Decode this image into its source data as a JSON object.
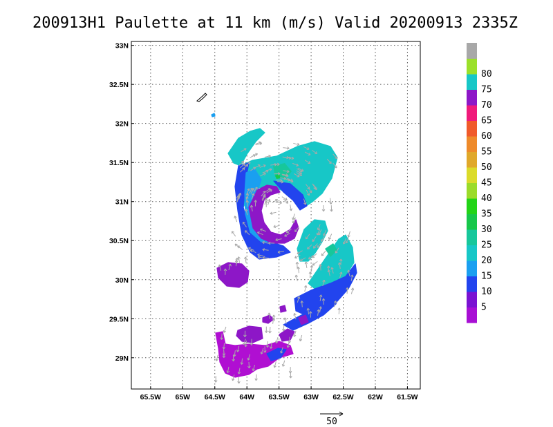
{
  "title": "200913H1 Paulette at 11 km (m/s) Valid 20200913 2335Z",
  "map": {
    "lon_range": [
      -65.8,
      -61.3
    ],
    "lat_range": [
      28.6,
      33.05
    ],
    "lon_ticks": [
      {
        "value": -65.5,
        "label": "65.5W"
      },
      {
        "value": -65.0,
        "label": "65W"
      },
      {
        "value": -64.5,
        "label": "64.5W"
      },
      {
        "value": -64.0,
        "label": "64W"
      },
      {
        "value": -63.5,
        "label": "63.5W"
      },
      {
        "value": -63.0,
        "label": "63W"
      },
      {
        "value": -62.5,
        "label": "62.5W"
      },
      {
        "value": -62.0,
        "label": "62W"
      },
      {
        "value": -61.5,
        "label": "61.5W"
      }
    ],
    "lat_ticks": [
      {
        "value": 29.0,
        "label": "29N"
      },
      {
        "value": 29.5,
        "label": "29.5N"
      },
      {
        "value": 30.0,
        "label": "30N"
      },
      {
        "value": 30.5,
        "label": "30.5N"
      },
      {
        "value": 31.0,
        "label": "31N"
      },
      {
        "value": 31.5,
        "label": "31.5N"
      },
      {
        "value": 32.0,
        "label": "32N"
      },
      {
        "value": 32.5,
        "label": "32.5N"
      },
      {
        "value": 33.0,
        "label": "33N"
      }
    ],
    "grid": "dotted",
    "colors": {
      "cyan": "#17c7c7",
      "teal": "#17c79b",
      "blue_light": "#1a9ff0",
      "blue": "#2244ee",
      "violet": "#8d17c7",
      "magenta": "#b00fd2",
      "green_dark": "#17c74a",
      "vector": "#a9a9a9",
      "coast": "#000000"
    }
  },
  "colorbar": {
    "bins": [
      {
        "color": "#a80fd4",
        "label": ""
      },
      {
        "color": "#7a12d2",
        "label": "5"
      },
      {
        "color": "#2244ee",
        "label": "10"
      },
      {
        "color": "#1a9ff0",
        "label": "15"
      },
      {
        "color": "#17c7c7",
        "label": "20"
      },
      {
        "color": "#17c79b",
        "label": "25"
      },
      {
        "color": "#17c74a",
        "label": "30"
      },
      {
        "color": "#22d417",
        "label": "35"
      },
      {
        "color": "#9bdb2a",
        "label": "40"
      },
      {
        "color": "#dbdb2a",
        "label": "45"
      },
      {
        "color": "#e0a82a",
        "label": "50"
      },
      {
        "color": "#ee8a2a",
        "label": "55"
      },
      {
        "color": "#f05a2a",
        "label": "60"
      },
      {
        "color": "#f01a7a",
        "label": "65"
      },
      {
        "color": "#8d17c7",
        "label": "70"
      },
      {
        "color": "#17c7c7",
        "label": "75"
      },
      {
        "color": "#9be02a",
        "label": "80"
      },
      {
        "color": "#a8a8a8",
        "label": ""
      }
    ]
  },
  "vector_scale": {
    "label": "50"
  }
}
